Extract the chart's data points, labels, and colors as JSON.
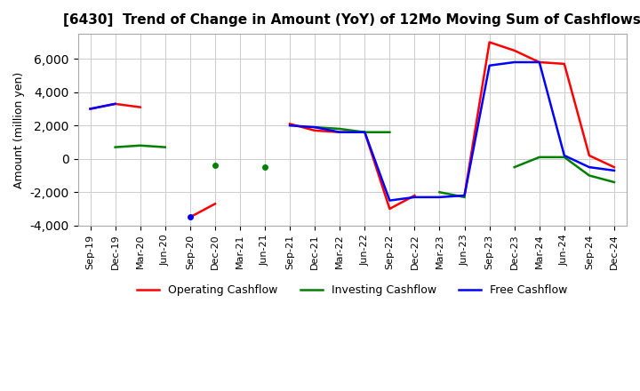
{
  "title": "[6430]  Trend of Change in Amount (YoY) of 12Mo Moving Sum of Cashflows",
  "ylabel": "Amount (million yen)",
  "ylim": [
    -4000,
    7500
  ],
  "yticks": [
    -4000,
    -2000,
    0,
    2000,
    4000,
    6000
  ],
  "x_labels": [
    "Sep-19",
    "Dec-19",
    "Mar-20",
    "Jun-20",
    "Sep-20",
    "Dec-20",
    "Mar-21",
    "Jun-21",
    "Sep-21",
    "Dec-21",
    "Mar-22",
    "Jun-22",
    "Sep-22",
    "Dec-22",
    "Mar-23",
    "Jun-23",
    "Sep-23",
    "Dec-23",
    "Mar-24",
    "Jun-24",
    "Sep-24",
    "Dec-24"
  ],
  "operating": [
    3000,
    3300,
    3100,
    null,
    -3500,
    -2700,
    null,
    null,
    2100,
    1700,
    1600,
    1600,
    -3000,
    -2200,
    null,
    -2200,
    7000,
    6500,
    5800,
    5700,
    200,
    -500
  ],
  "investing": [
    null,
    700,
    800,
    700,
    null,
    -400,
    null,
    -500,
    null,
    1900,
    1800,
    1600,
    1600,
    null,
    -2000,
    -2300,
    null,
    -500,
    100,
    100,
    -1000,
    -1400
  ],
  "free": [
    3000,
    3300,
    null,
    null,
    -3500,
    null,
    null,
    null,
    2000,
    1900,
    1600,
    1600,
    -2500,
    -2300,
    -2300,
    -2200,
    5600,
    5800,
    5800,
    200,
    -500,
    -700
  ],
  "line_colors": {
    "operating": "#ff0000",
    "investing": "#008000",
    "free": "#0000ff"
  },
  "legend_labels": [
    "Operating Cashflow",
    "Investing Cashflow",
    "Free Cashflow"
  ],
  "background_color": "#ffffff",
  "grid_color": "#cccccc"
}
